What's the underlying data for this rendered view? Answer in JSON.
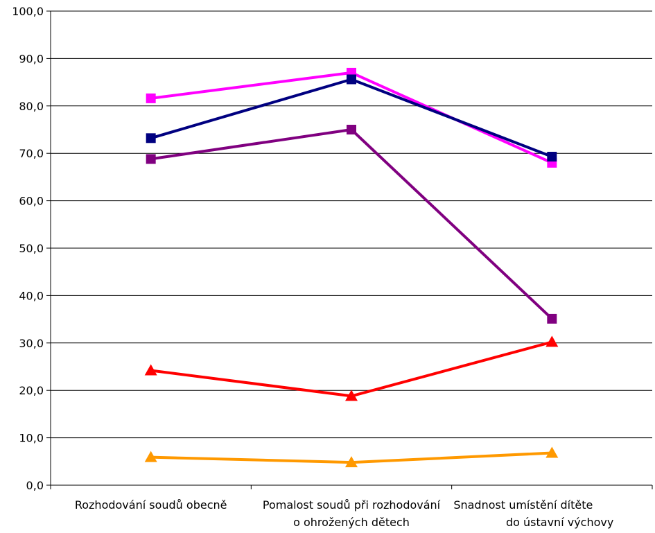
{
  "chart_data": {
    "type": "line",
    "categories": [
      [
        "Rozhodování soudů obecně"
      ],
      [
        "Pomalost soudů při rozhodování",
        "o ohrožených dětech"
      ],
      [
        "Snadnost umístění dítěte",
        "do ústavní výchovy"
      ]
    ],
    "y_tick_labels": [
      "0,0",
      "10,0",
      "20,0",
      "30,0",
      "40,0",
      "50,0",
      "60,0",
      "70,0",
      "80,0",
      "90,0",
      "100,0"
    ],
    "ylim": [
      0,
      100
    ],
    "grid": true,
    "legend": "none",
    "series": [
      {
        "values": [
          81.6,
          87.0,
          68.0
        ],
        "color": "#ff00ff",
        "marker": "square"
      },
      {
        "values": [
          73.2,
          85.6,
          69.3
        ],
        "color": "#000080",
        "marker": "square"
      },
      {
        "values": [
          68.8,
          75.0,
          35.1
        ],
        "color": "#800080",
        "marker": "square"
      },
      {
        "values": [
          24.2,
          18.8,
          30.2
        ],
        "color": "#ff0000",
        "marker": "triangle"
      },
      {
        "values": [
          5.9,
          4.8,
          6.8
        ],
        "color": "#ff9900",
        "marker": "triangle"
      }
    ]
  }
}
